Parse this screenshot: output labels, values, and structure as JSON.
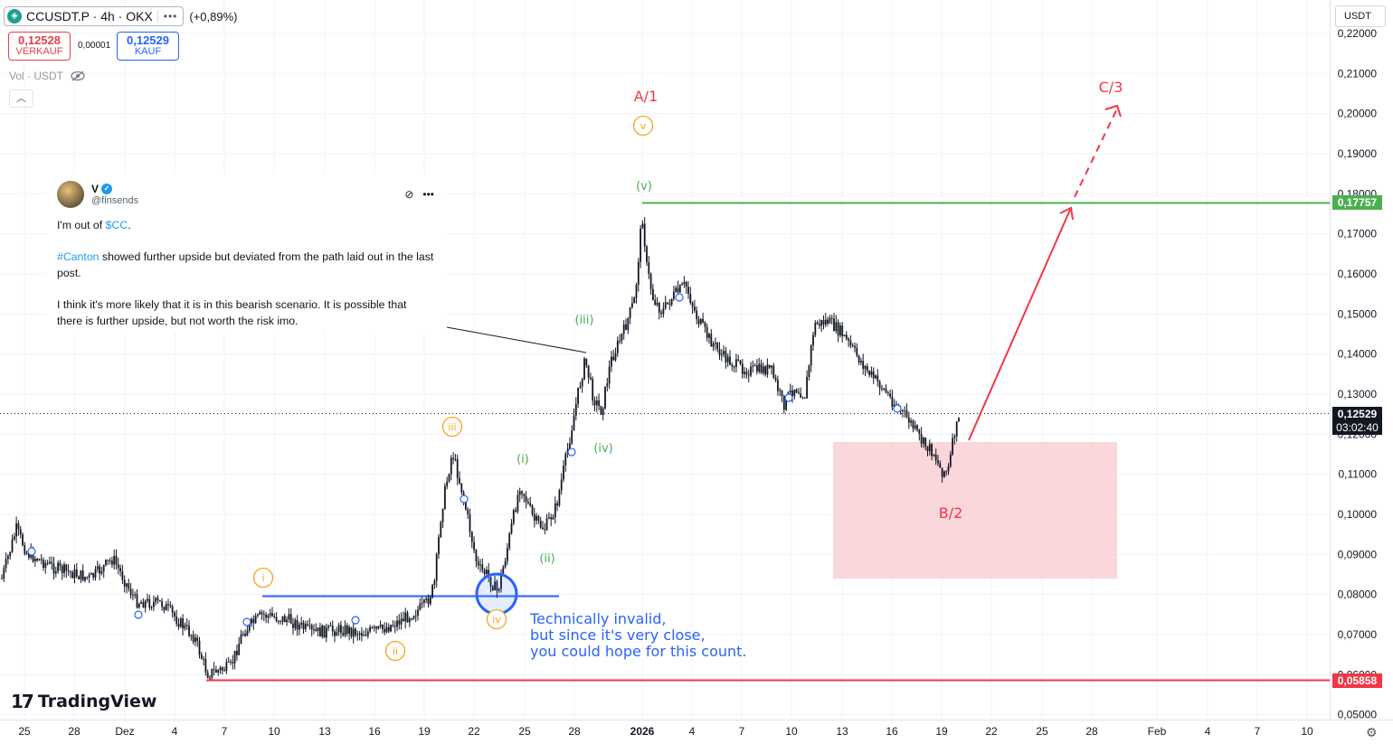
{
  "header": {
    "symbol": "CCUSDT.P · 4h · OKX",
    "more": "•••",
    "change": "(+0,89%)",
    "coin_icon": "canton-coin-icon"
  },
  "trade": {
    "sell_price": "0,12528",
    "sell_label": "VERKAUF",
    "spread": "0,00001",
    "buy_price": "0,12529",
    "buy_label": "KAUF"
  },
  "volume": {
    "label": "Vol · USDT",
    "icon": "eye-off-icon"
  },
  "axis": {
    "currency": "USDT",
    "price_labels": [
      "0,22000",
      "0,21000",
      "0,20000",
      "0,19000",
      "0,18000",
      "0,17000",
      "0,16000",
      "0,15000",
      "0,14000",
      "0,13000",
      "0,12000",
      "0,11000",
      "0,10000",
      "0,09000",
      "0,08000",
      "0,07000",
      "0,06000",
      "0,05000"
    ],
    "time_labels": [
      "25",
      "28",
      "Dez",
      "4",
      "7",
      "10",
      "13",
      "16",
      "19",
      "22",
      "25",
      "28",
      "2026",
      "4",
      "7",
      "10",
      "13",
      "16",
      "19",
      "22",
      "25",
      "28",
      "Feb",
      "4",
      "7",
      "10"
    ]
  },
  "badges": {
    "resistance": "0,17757",
    "current_price": "0,12529",
    "countdown": "03:02:40",
    "support": "0,05858"
  },
  "wave_labels": {
    "A1": "A/1",
    "C3": "C/3",
    "B2": "B/2",
    "orange_v": "v",
    "green_v": "(v)",
    "green_iii": "(iii)",
    "green_iv": "(iv)",
    "green_i": "(i)",
    "green_ii": "(ii)",
    "orange_iii": "iii",
    "orange_i": "i",
    "orange_ii": "ii",
    "orange_iv": "iv"
  },
  "tweet": {
    "name": "V",
    "handle": "@finsends",
    "line1_pre": "I'm out of ",
    "line1_link": "$CC",
    "line1_post": ".",
    "line2_link": "#Canton",
    "line2_rest": " showed further upside but deviated from the path laid out in the last post.",
    "line3": "I think it's more likely that it is in this bearish scenario. It is possible that there is further upside, but not worth the risk imo."
  },
  "note": {
    "line1": "Technically invalid,",
    "line2": "but since it's very close,",
    "line3": "you could hope for this count."
  },
  "brand": {
    "mark": "17",
    "name": "TradingView"
  },
  "colors": {
    "green": "#4caf50",
    "red": "#f23645",
    "blue": "#2962ff",
    "orange": "#f7a21b",
    "zone": "#f8c9cf"
  },
  "chart_data": {
    "type": "candlestick",
    "symbol": "CCUSDT.P",
    "interval": "4h",
    "exchange": "OKX",
    "ylim": [
      0.05,
      0.22
    ],
    "approx_closes": [
      {
        "x": "25",
        "y": 0.087
      },
      {
        "x": "28",
        "y": 0.085
      },
      {
        "x": "Dez",
        "y": 0.085
      },
      {
        "x": "4",
        "y": 0.072
      },
      {
        "x": "6",
        "y": 0.059
      },
      {
        "x": "9",
        "y": 0.075
      },
      {
        "x": "13",
        "y": 0.071
      },
      {
        "x": "19",
        "y": 0.078
      },
      {
        "x": "21",
        "y": 0.115
      },
      {
        "x": "23",
        "y": 0.081
      },
      {
        "x": "25",
        "y": 0.105
      },
      {
        "x": "27",
        "y": 0.097
      },
      {
        "x": "29",
        "y": 0.14
      },
      {
        "x": "2026",
        "y": 0.1776
      },
      {
        "x": "4",
        "y": 0.155
      },
      {
        "x": "7",
        "y": 0.14
      },
      {
        "x": "10",
        "y": 0.126
      },
      {
        "x": "12",
        "y": 0.152
      },
      {
        "x": "16",
        "y": 0.128
      },
      {
        "x": "19",
        "y": 0.108
      },
      {
        "x": "20",
        "y": 0.1253
      }
    ],
    "levels": [
      {
        "price": 0.17757,
        "color": "green"
      },
      {
        "price": 0.05858,
        "color": "red"
      },
      {
        "price": 0.0796,
        "color": "blue"
      }
    ],
    "zone": {
      "from": "13",
      "to": "29",
      "low": 0.084,
      "high": 0.118
    },
    "projection": {
      "target_label": "C/3"
    }
  }
}
